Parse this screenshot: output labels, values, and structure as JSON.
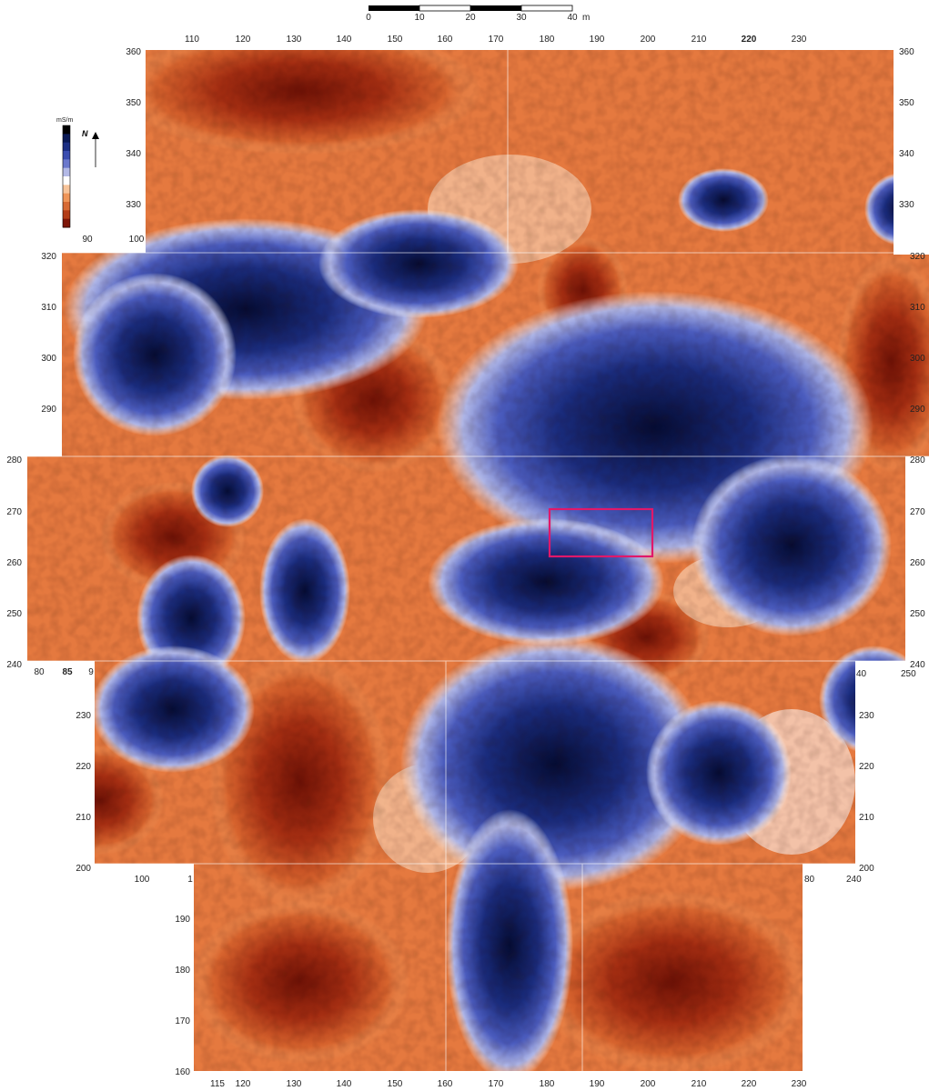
{
  "scale_bar": {
    "labels": [
      "0",
      "10",
      "20",
      "30",
      "40"
    ],
    "unit": "m"
  },
  "legend": {
    "unit": "mS/m",
    "north_label": "N",
    "ramp_colors": [
      "#000000",
      "#0b1a55",
      "#1c2f84",
      "#3a4db0",
      "#6b78cc",
      "#b3b9e6",
      "#ffffff",
      "#f7c49a",
      "#ef9558",
      "#d76a33",
      "#b33d18",
      "#7e1608"
    ]
  },
  "colors": {
    "high_conductivity": "#0f1f6b",
    "mid_high": "#4a5bbd",
    "low_blue": "#c2c6ec",
    "neutral": "#ffffff",
    "low_orange": "#f4a46b",
    "mid_orange": "#d8622d",
    "low_conductivity": "#8f1c0c",
    "highlight_box": "#e0186a"
  },
  "axes": {
    "top_x": [
      "110",
      "120",
      "130",
      "140",
      "150",
      "160",
      "170",
      "180",
      "190",
      "200",
      "210",
      "220",
      "230"
    ],
    "left_y_top": [
      "360",
      "350",
      "340",
      "330"
    ],
    "right_y": [
      "360",
      "350",
      "340",
      "330",
      "320",
      "310",
      "300",
      "290",
      "280",
      "270",
      "260",
      "250",
      "240",
      "230",
      "220",
      "210",
      "200"
    ],
    "legend_x": [
      "90",
      "100"
    ],
    "left_y_mid1": [
      "320",
      "310",
      "300",
      "290"
    ],
    "left_y_mid2": [
      "280",
      "270",
      "260",
      "250",
      "240"
    ],
    "x_240_row": [
      "80",
      "85",
      "9"
    ],
    "x_240_right": [
      "40",
      "250"
    ],
    "left_y_lower": [
      "230",
      "220",
      "210",
      "200"
    ],
    "x_200_row": [
      "100",
      "1"
    ],
    "x_200_right": [
      "80",
      "240"
    ],
    "left_y_bottom": [
      "190",
      "180",
      "170",
      "160"
    ],
    "bottom_x": [
      "115",
      "120",
      "130",
      "140",
      "150",
      "160",
      "170",
      "180",
      "190",
      "200",
      "210",
      "220",
      "230"
    ]
  }
}
